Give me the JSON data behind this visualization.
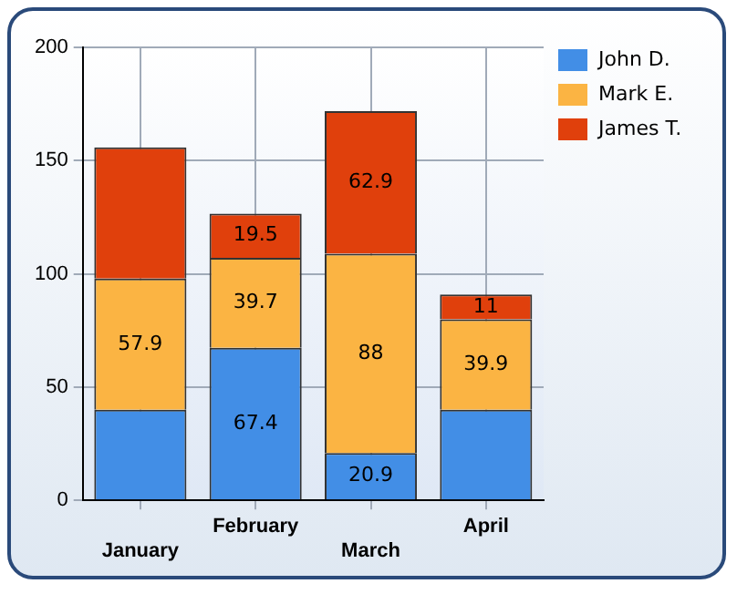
{
  "chart_data": {
    "type": "bar",
    "stacked": true,
    "categories": [
      "January",
      "February",
      "March",
      "April"
    ],
    "series": [
      {
        "name": "John D.",
        "color": "#428ee6",
        "values": [
          40,
          67.4,
          20.9,
          40
        ],
        "value_labels": [
          null,
          "67.4",
          "20.9",
          null
        ]
      },
      {
        "name": "Mark E.",
        "color": "#fbb443",
        "values": [
          57.9,
          39.7,
          88,
          39.9
        ],
        "value_labels": [
          "57.9",
          "39.7",
          "88",
          "39.9"
        ]
      },
      {
        "name": "James T.",
        "color": "#e0400c",
        "values": [
          58,
          19.5,
          62.9,
          11
        ],
        "value_labels": [
          null,
          "19.5",
          "62.9",
          "11"
        ]
      }
    ],
    "ylim": [
      0,
      200
    ],
    "yticks": [
      0,
      50,
      100,
      150,
      200
    ],
    "grid": true,
    "legend": "top right"
  }
}
